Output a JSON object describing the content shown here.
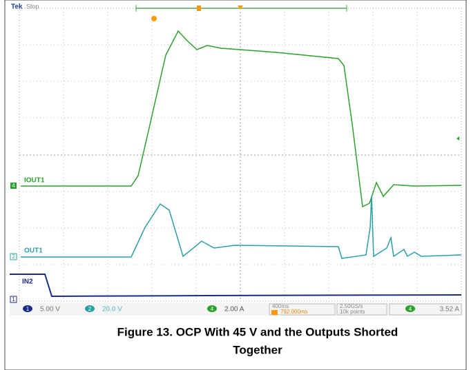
{
  "scope": {
    "brand": "Tek",
    "state": "Stop",
    "traces": [
      "IOUT1",
      "OUT1",
      "IN2"
    ],
    "markers": [
      "4",
      "2",
      "1"
    ],
    "status": {
      "ch1_num": "1",
      "ch1_scale": "5.00 V",
      "ch2_num": "2",
      "ch2_scale": "20.0 V",
      "ch4_num": "4",
      "ch4_scale": "2.00 A",
      "timebase": "400ms",
      "trigger_pos": "792.000ms",
      "sample_rate": "2.50GS/s",
      "record": "10k points",
      "trig_src": "4",
      "trig_level": "3.52 A"
    }
  },
  "caption": {
    "line1": "Figure 13. OCP With 45 V and the Outputs Shorted",
    "line2": "Together"
  }
}
